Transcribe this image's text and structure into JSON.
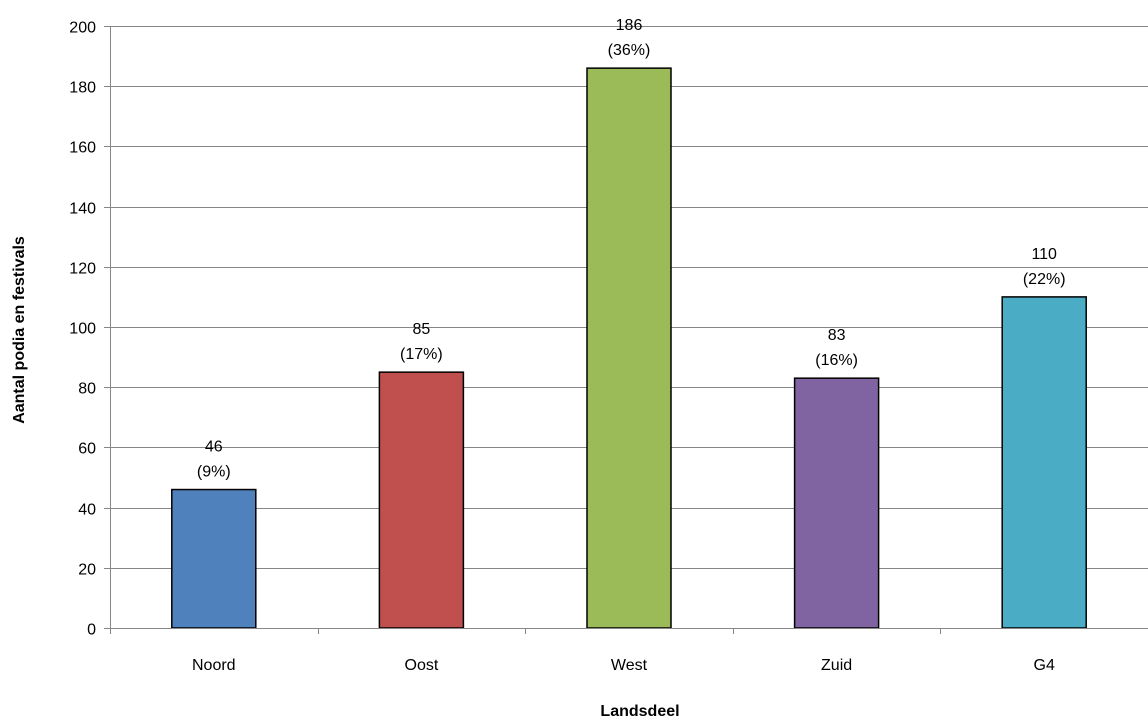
{
  "chart_data": {
    "type": "bar",
    "title": "",
    "xlabel": "Landsdeel",
    "ylabel": "Aantal podia en festivals",
    "categories": [
      "Noord",
      "Oost",
      "West",
      "Zuid",
      "G4"
    ],
    "values": [
      46,
      85,
      186,
      83,
      110
    ],
    "value_labels": [
      "46",
      "85",
      "186",
      "83",
      "110"
    ],
    "percent_labels": [
      "(9%)",
      "(17%)",
      "(36%)",
      "(16%)",
      "(22%)"
    ],
    "bar_colors": [
      "#4f81bd",
      "#c0504d",
      "#9bbb59",
      "#8064a2",
      "#4bacc6"
    ],
    "ylim": [
      0,
      200
    ],
    "yticks": [
      0,
      20,
      40,
      60,
      80,
      100,
      120,
      140,
      160,
      180,
      200
    ],
    "grid": true,
    "legend": "none"
  }
}
